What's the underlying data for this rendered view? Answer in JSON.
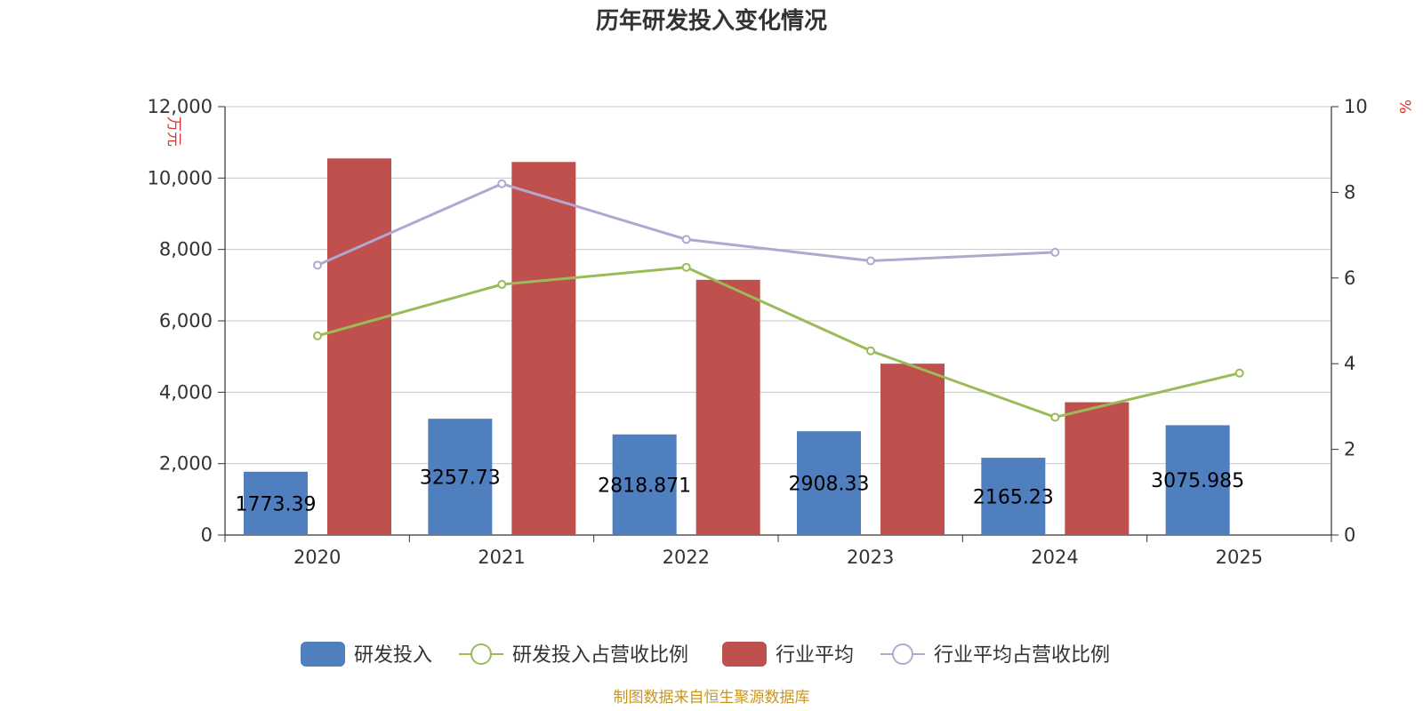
{
  "chart_data": {
    "type": "bar",
    "title": "历年研发投入变化情况",
    "categories": [
      "2020",
      "2021",
      "2022",
      "2023",
      "2024",
      "2025"
    ],
    "y_left": {
      "unit": "万元",
      "range": [
        0,
        12000
      ],
      "ticks": [
        0,
        2000,
        4000,
        6000,
        8000,
        10000,
        12000
      ],
      "tick_labels": [
        "0",
        "2,000",
        "4,000",
        "6,000",
        "8,000",
        "10,000",
        "12,000"
      ]
    },
    "y_right": {
      "unit": "%",
      "range": [
        0,
        10
      ],
      "ticks": [
        0,
        2,
        4,
        6,
        8,
        10
      ],
      "tick_labels": [
        "0",
        "2",
        "4",
        "6",
        "8",
        "10"
      ]
    },
    "grid": true,
    "legend_position": "bottom",
    "series": [
      {
        "name": "研发投入",
        "type": "bar",
        "axis": "left",
        "color": "#4f7fbf",
        "values": [
          1773.39,
          3257.73,
          2818.871,
          2908.33,
          2165.23,
          3075.985
        ],
        "labels": [
          "1773.39",
          "3257.73",
          "2818.871",
          "2908.33",
          "2165.23",
          "3075.985"
        ]
      },
      {
        "name": "研发投入占营收比例",
        "type": "line",
        "axis": "right",
        "color": "#9bbb59",
        "values": [
          4.65,
          5.85,
          6.25,
          4.3,
          2.75,
          3.78
        ]
      },
      {
        "name": "行业平均",
        "type": "bar",
        "axis": "left",
        "color": "#c0504d",
        "values": [
          10550,
          10450,
          7150,
          4800,
          3720,
          null
        ]
      },
      {
        "name": "行业平均占营收比例",
        "type": "line",
        "axis": "right",
        "color": "#b3a7cf",
        "values": [
          6.3,
          8.2,
          6.9,
          6.4,
          6.6,
          null
        ]
      }
    ],
    "source_note": "制图数据来自恒生聚源数据库"
  }
}
